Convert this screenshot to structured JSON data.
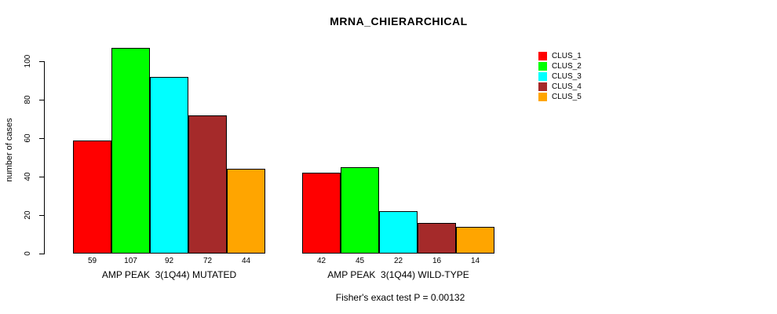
{
  "title": "MRNA_CHIERARCHICAL",
  "y_axis": {
    "label": "number of cases",
    "ticks": [
      0,
      20,
      40,
      60,
      80,
      100
    ]
  },
  "footer": "Fisher's exact test P = 0.00132",
  "legend": {
    "items": [
      {
        "label": "CLUS_1",
        "color": "#FF0000"
      },
      {
        "label": "CLUS_2",
        "color": "#00FF00"
      },
      {
        "label": "CLUS_3",
        "color": "#00FFFF"
      },
      {
        "label": "CLUS_4",
        "color": "#A52A2A"
      },
      {
        "label": "CLUS_5",
        "color": "#FFA500"
      }
    ]
  },
  "chart_data": {
    "type": "bar",
    "title": "MRNA_CHIERARCHICAL",
    "xlabel": "",
    "ylabel": "number of cases",
    "ylim": [
      0,
      110
    ],
    "grid": false,
    "legend_position": "right",
    "categories": [
      "AMP PEAK  3(1Q44) MUTATED",
      "AMP PEAK  3(1Q44) WILD-TYPE"
    ],
    "series": [
      {
        "name": "CLUS_1",
        "color": "#FF0000",
        "values": [
          59,
          42
        ]
      },
      {
        "name": "CLUS_2",
        "color": "#00FF00",
        "values": [
          107,
          45
        ]
      },
      {
        "name": "CLUS_3",
        "color": "#00FFFF",
        "values": [
          92,
          22
        ]
      },
      {
        "name": "CLUS_4",
        "color": "#A52A2A",
        "values": [
          72,
          16
        ]
      },
      {
        "name": "CLUS_5",
        "color": "#FFA500",
        "values": [
          44,
          14
        ]
      }
    ],
    "bar_value_labels": [
      [
        59,
        107,
        92,
        72,
        44
      ],
      [
        42,
        45,
        22,
        16,
        14
      ]
    ],
    "annotation": "Fisher's exact test P = 0.00132"
  }
}
